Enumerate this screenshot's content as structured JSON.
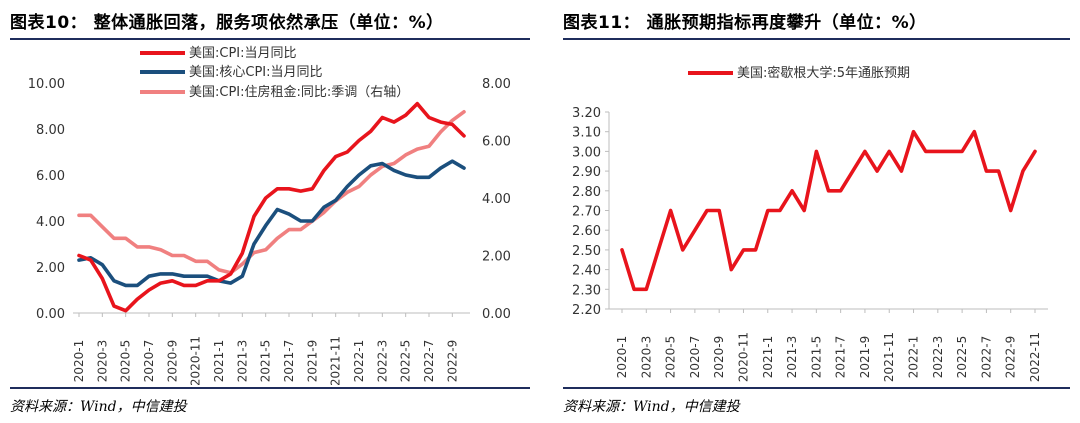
{
  "left": {
    "title": "图表10：  整体通胀回落，服务项依然承压（单位：%）",
    "source": "资料来源：Wind，中信建投"
  },
  "right": {
    "title": "图表11：  通胀预期指标再度攀升（单位：%）",
    "source": "资料来源：Wind，中信建投"
  },
  "chart_data": [
    {
      "type": "line",
      "title": "整体通胀回落，服务项依然承压（单位：%）",
      "x": [
        "2020-1",
        "2020-2",
        "2020-3",
        "2020-4",
        "2020-5",
        "2020-6",
        "2020-7",
        "2020-8",
        "2020-9",
        "2020-10",
        "2020-11",
        "2020-12",
        "2021-1",
        "2021-2",
        "2021-3",
        "2021-4",
        "2021-5",
        "2021-6",
        "2021-7",
        "2021-8",
        "2021-9",
        "2021-10",
        "2021-11",
        "2021-12",
        "2022-1",
        "2022-2",
        "2022-3",
        "2022-4",
        "2022-5",
        "2022-6",
        "2022-7",
        "2022-8",
        "2022-9",
        "2022-10"
      ],
      "tick_labels": [
        "2020-1",
        "2020-3",
        "2020-5",
        "2020-7",
        "2020-9",
        "2020-11",
        "2021-1",
        "2021-3",
        "2021-5",
        "2021-7",
        "2021-9",
        "2021-11",
        "2022-1",
        "2022-3",
        "2022-5",
        "2022-7",
        "2022-9"
      ],
      "y_left_ticks": [
        "0.00",
        "2.00",
        "4.00",
        "6.00",
        "8.00",
        "10.00"
      ],
      "y_right_ticks": [
        "0.00",
        "2.00",
        "4.00",
        "6.00",
        "8.00"
      ],
      "ylim_left": [
        0,
        10
      ],
      "ylim_right": [
        0,
        8
      ],
      "series": [
        {
          "name": "美国:CPI:当月同比",
          "color": "#e8141c",
          "axis": "left",
          "values": [
            2.5,
            2.3,
            1.5,
            0.3,
            0.1,
            0.6,
            1.0,
            1.3,
            1.4,
            1.2,
            1.2,
            1.4,
            1.4,
            1.7,
            2.6,
            4.2,
            5.0,
            5.4,
            5.4,
            5.3,
            5.4,
            6.2,
            6.8,
            7.0,
            7.5,
            7.9,
            8.5,
            8.3,
            8.6,
            9.1,
            8.5,
            8.3,
            8.2,
            7.7
          ]
        },
        {
          "name": "美国:核心CPI:当月同比",
          "color": "#1b4f7d",
          "axis": "left",
          "values": [
            2.3,
            2.4,
            2.1,
            1.4,
            1.2,
            1.2,
            1.6,
            1.7,
            1.7,
            1.6,
            1.6,
            1.6,
            1.4,
            1.3,
            1.6,
            3.0,
            3.8,
            4.5,
            4.3,
            4.0,
            4.0,
            4.6,
            4.9,
            5.5,
            6.0,
            6.4,
            6.5,
            6.2,
            6.0,
            5.9,
            5.9,
            6.3,
            6.6,
            6.3
          ]
        },
        {
          "name": "美国:CPI:住房租金:同比:季调（右轴）",
          "color": "#f08080",
          "axis": "right",
          "values": [
            3.4,
            3.4,
            3.0,
            2.6,
            2.6,
            2.3,
            2.3,
            2.2,
            2.0,
            2.0,
            1.8,
            1.8,
            1.5,
            1.4,
            1.7,
            2.1,
            2.2,
            2.6,
            2.9,
            2.9,
            3.2,
            3.5,
            3.9,
            4.2,
            4.4,
            4.8,
            5.1,
            5.2,
            5.5,
            5.7,
            5.8,
            6.3,
            6.7,
            7.0
          ]
        }
      ]
    },
    {
      "type": "line",
      "title": "通胀预期指标再度攀升（单位：%）",
      "x": [
        "2020-1",
        "2020-2",
        "2020-3",
        "2020-4",
        "2020-5",
        "2020-6",
        "2020-7",
        "2020-8",
        "2020-9",
        "2020-10",
        "2020-11",
        "2020-12",
        "2021-1",
        "2021-2",
        "2021-3",
        "2021-4",
        "2021-5",
        "2021-6",
        "2021-7",
        "2021-8",
        "2021-9",
        "2021-10",
        "2021-11",
        "2021-12",
        "2022-1",
        "2022-2",
        "2022-3",
        "2022-4",
        "2022-5",
        "2022-6",
        "2022-7",
        "2022-8",
        "2022-9",
        "2022-10",
        "2022-11"
      ],
      "tick_labels": [
        "2020-1",
        "2020-3",
        "2020-5",
        "2020-7",
        "2020-9",
        "2020-11",
        "2021-1",
        "2021-3",
        "2021-5",
        "2021-7",
        "2021-9",
        "2021-11",
        "2022-1",
        "2022-3",
        "2022-5",
        "2022-7",
        "2022-9",
        "2022-11"
      ],
      "y_ticks": [
        "2.20",
        "2.30",
        "2.40",
        "2.50",
        "2.60",
        "2.70",
        "2.80",
        "2.90",
        "3.00",
        "3.10",
        "3.20"
      ],
      "ylim": [
        2.2,
        3.2
      ],
      "series": [
        {
          "name": "美国:密歇根大学:5年通胀预期",
          "color": "#e8141c",
          "values": [
            2.5,
            2.3,
            2.3,
            2.5,
            2.7,
            2.5,
            2.6,
            2.7,
            2.7,
            2.4,
            2.5,
            2.5,
            2.7,
            2.7,
            2.8,
            2.7,
            3.0,
            2.8,
            2.8,
            2.9,
            3.0,
            2.9,
            3.0,
            2.9,
            3.1,
            3.0,
            3.0,
            3.0,
            3.0,
            3.1,
            2.9,
            2.9,
            2.7,
            2.9,
            3.0
          ]
        }
      ]
    }
  ]
}
